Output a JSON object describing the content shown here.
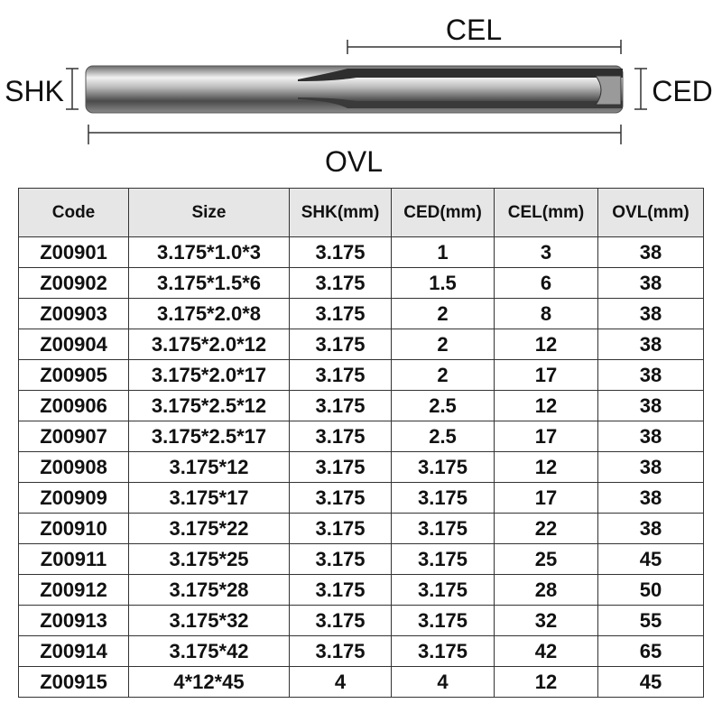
{
  "diagram": {
    "labels": {
      "cel": "CEL",
      "shk": "SHK",
      "ced": "CED",
      "ovl": "OVL"
    }
  },
  "table": {
    "header": [
      "Code",
      "Size",
      "SHK(mm)",
      "CED(mm)",
      "CEL(mm)",
      "OVL(mm)"
    ],
    "rows": [
      [
        "Z00901",
        "3.175*1.0*3",
        "3.175",
        "1",
        "3",
        "38"
      ],
      [
        "Z00902",
        "3.175*1.5*6",
        "3.175",
        "1.5",
        "6",
        "38"
      ],
      [
        "Z00903",
        "3.175*2.0*8",
        "3.175",
        "2",
        "8",
        "38"
      ],
      [
        "Z00904",
        "3.175*2.0*12",
        "3.175",
        "2",
        "12",
        "38"
      ],
      [
        "Z00905",
        "3.175*2.0*17",
        "3.175",
        "2",
        "17",
        "38"
      ],
      [
        "Z00906",
        "3.175*2.5*12",
        "3.175",
        "2.5",
        "12",
        "38"
      ],
      [
        "Z00907",
        "3.175*2.5*17",
        "3.175",
        "2.5",
        "17",
        "38"
      ],
      [
        "Z00908",
        "3.175*12",
        "3.175",
        "3.175",
        "12",
        "38"
      ],
      [
        "Z00909",
        "3.175*17",
        "3.175",
        "3.175",
        "17",
        "38"
      ],
      [
        "Z00910",
        "3.175*22",
        "3.175",
        "3.175",
        "22",
        "38"
      ],
      [
        "Z00911",
        "3.175*25",
        "3.175",
        "3.175",
        "25",
        "45"
      ],
      [
        "Z00912",
        "3.175*28",
        "3.175",
        "3.175",
        "28",
        "50"
      ],
      [
        "Z00913",
        "3.175*32",
        "3.175",
        "3.175",
        "32",
        "55"
      ],
      [
        "Z00914",
        "3.175*42",
        "3.175",
        "3.175",
        "42",
        "65"
      ],
      [
        "Z00915",
        "4*12*45",
        "4",
        "4",
        "12",
        "45"
      ]
    ]
  }
}
